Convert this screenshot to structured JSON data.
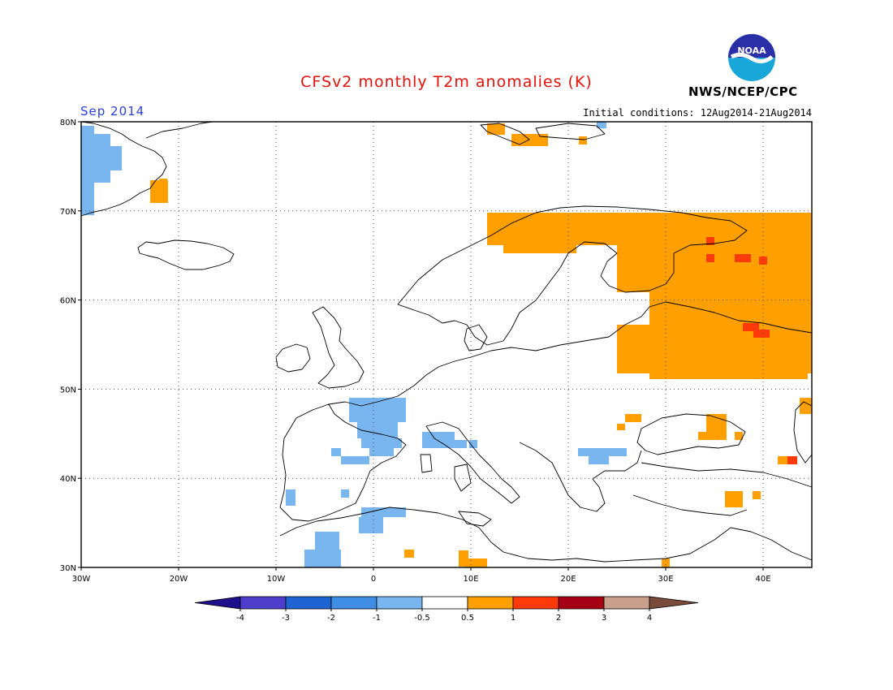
{
  "header": {
    "title": "CFSv2 monthly T2m anomalies (K)",
    "month": "Sep 2014",
    "initial_conditions": "Initial conditions: 12Aug2014-21Aug2014",
    "agency": "NWS/NCEP/CPC",
    "logo_text": "NOAA"
  },
  "map": {
    "lon_range": [
      -30,
      45
    ],
    "lat_range": [
      30,
      80
    ],
    "lat_ticks": [
      "80N",
      "70N",
      "60N",
      "50N",
      "40N",
      "30N"
    ],
    "lon_ticks": [
      "30W",
      "20W",
      "10W",
      "0",
      "10E",
      "20E",
      "30E",
      "40E"
    ],
    "grid_lines": "dotted"
  },
  "colorbar": {
    "labels": [
      "-4",
      "-3",
      "-2",
      "-1",
      "-0.5",
      "0.5",
      "1",
      "2",
      "3",
      "4"
    ],
    "colors": [
      "#1e0f8c",
      "#4f3dcc",
      "#1f63d2",
      "#3f8ee6",
      "#79b6f0",
      "#ffffff",
      "#ffa000",
      "#ff3a0a",
      "#a50014",
      "#c8a08c",
      "#7a4a3a"
    ]
  }
}
